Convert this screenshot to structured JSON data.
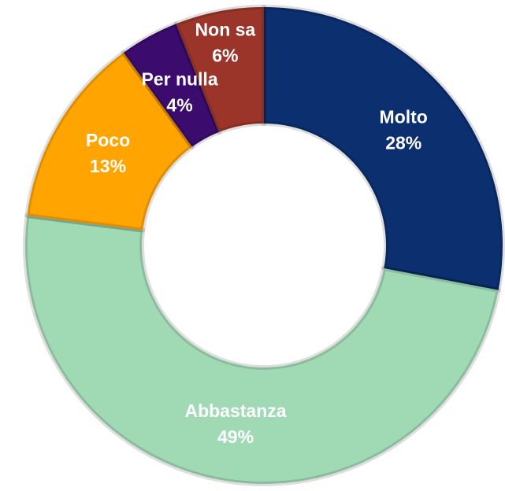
{
  "chart_data": {
    "type": "donut",
    "categories": [
      "Molto",
      "Abbastanza",
      "Poco",
      "Per nulla",
      "Non sa"
    ],
    "values": [
      28,
      49,
      13,
      4,
      6
    ],
    "value_labels": [
      "28%",
      "49%",
      "13%",
      "4%",
      "6%"
    ],
    "colors": [
      "#0b2f6f",
      "#a0dab5",
      "#ffa400",
      "#3c0b6e",
      "#9c3529"
    ]
  }
}
